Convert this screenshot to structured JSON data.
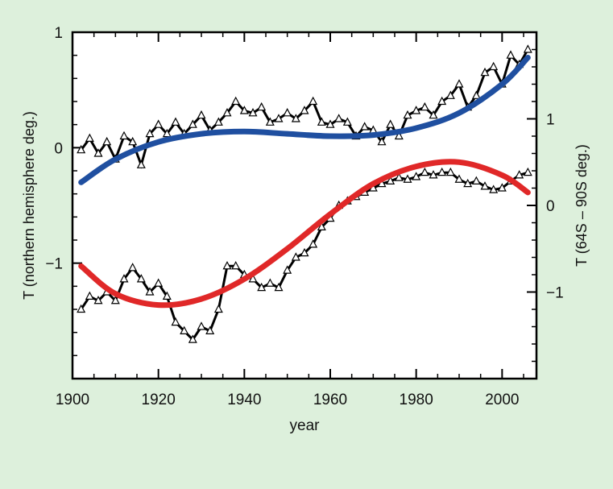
{
  "chart_data": {
    "type": "line",
    "title": "",
    "xlabel": "year",
    "ylabel_left": "T (northern hemisphere deg.)",
    "ylabel_right": "T (64S – 90S deg.)",
    "xlim": [
      1900,
      2008
    ],
    "ylim_left": [
      -2,
      1
    ],
    "ylim_right": [
      -2,
      2
    ],
    "x_ticks": [
      1900,
      1920,
      1940,
      1960,
      1980,
      2000
    ],
    "y_ticks_left": [
      {
        "value": 1,
        "label": "1"
      },
      {
        "value": 0,
        "label": "0"
      },
      {
        "value": -1,
        "label": "−1"
      }
    ],
    "y_ticks_right": [
      {
        "value": 1,
        "label": "1"
      },
      {
        "value": 0,
        "label": "0"
      },
      {
        "value": -1,
        "label": "−1"
      }
    ],
    "grid": false,
    "colors": {
      "background": "#ddf0dc",
      "plot_bg": "#ffffff",
      "northern_fit": "#1f4fa0",
      "antarctic_fit": "#e02828",
      "observed": "#000000"
    },
    "series": [
      {
        "axis": "left",
        "style": "line-with-triangle-markers",
        "x": [
          1902,
          1904,
          1906,
          1908,
          1910,
          1912,
          1914,
          1916,
          1918,
          1920,
          1922,
          1924,
          1926,
          1928,
          1930,
          1932,
          1934,
          1936,
          1938,
          1940,
          1942,
          1944,
          1946,
          1948,
          1950,
          1952,
          1954,
          1956,
          1958,
          1960,
          1962,
          1964,
          1966,
          1968,
          1970,
          1972,
          1974,
          1976,
          1978,
          1980,
          1982,
          1984,
          1986,
          1988,
          1990,
          1992,
          1994,
          1996,
          1998,
          2000,
          2002,
          2004,
          2006
        ],
        "y": [
          -0.02,
          0.08,
          -0.05,
          0.05,
          -0.1,
          0.1,
          0.05,
          -0.15,
          0.12,
          0.2,
          0.12,
          0.22,
          0.12,
          0.2,
          0.28,
          0.15,
          0.22,
          0.3,
          0.4,
          0.32,
          0.3,
          0.35,
          0.22,
          0.25,
          0.3,
          0.25,
          0.32,
          0.4,
          0.22,
          0.2,
          0.25,
          0.22,
          0.1,
          0.18,
          0.15,
          0.05,
          0.2,
          0.1,
          0.28,
          0.32,
          0.35,
          0.28,
          0.4,
          0.45,
          0.55,
          0.35,
          0.45,
          0.65,
          0.7,
          0.55,
          0.8,
          0.72,
          0.85
        ]
      },
      {
        "axis": "left",
        "style": "smooth-fit",
        "x": [
          1902,
          1910,
          1920,
          1930,
          1940,
          1950,
          1960,
          1970,
          1980,
          1990,
          2000,
          2006
        ],
        "y": [
          -0.3,
          -0.1,
          0.05,
          0.12,
          0.14,
          0.12,
          0.1,
          0.11,
          0.17,
          0.3,
          0.55,
          0.78
        ]
      },
      {
        "axis": "right",
        "style": "line-with-triangle-markers",
        "x": [
          1902,
          1904,
          1906,
          1908,
          1910,
          1912,
          1914,
          1916,
          1918,
          1920,
          1922,
          1924,
          1926,
          1928,
          1930,
          1932,
          1934,
          1936,
          1938,
          1940,
          1942,
          1944,
          1946,
          1948,
          1950,
          1952,
          1954,
          1956,
          1958,
          1960,
          1962,
          1964,
          1966,
          1968,
          1970,
          1972,
          1974,
          1976,
          1978,
          1980,
          1982,
          1984,
          1986,
          1988,
          1990,
          1992,
          1994,
          1996,
          1998,
          2000,
          2002,
          2004,
          2006
        ],
        "y": [
          -1.2,
          -1.05,
          -1.1,
          -1.0,
          -1.1,
          -0.85,
          -0.72,
          -0.85,
          -1.0,
          -0.9,
          -1.05,
          -1.35,
          -1.45,
          -1.55,
          -1.4,
          -1.45,
          -1.2,
          -0.7,
          -0.7,
          -0.8,
          -0.85,
          -0.95,
          -0.9,
          -0.95,
          -0.75,
          -0.6,
          -0.55,
          -0.45,
          -0.25,
          -0.15,
          0.0,
          0.05,
          0.1,
          0.15,
          0.2,
          0.25,
          0.28,
          0.32,
          0.3,
          0.33,
          0.38,
          0.35,
          0.38,
          0.38,
          0.3,
          0.25,
          0.28,
          0.22,
          0.18,
          0.2,
          0.28,
          0.35,
          0.38
        ]
      },
      {
        "axis": "right",
        "style": "smooth-fit",
        "x": [
          1902,
          1910,
          1920,
          1930,
          1940,
          1950,
          1960,
          1970,
          1980,
          1990,
          2000,
          2006
        ],
        "y": [
          -0.7,
          -1.02,
          -1.15,
          -1.08,
          -0.85,
          -0.5,
          -0.1,
          0.25,
          0.45,
          0.5,
          0.35,
          0.15
        ]
      }
    ]
  }
}
